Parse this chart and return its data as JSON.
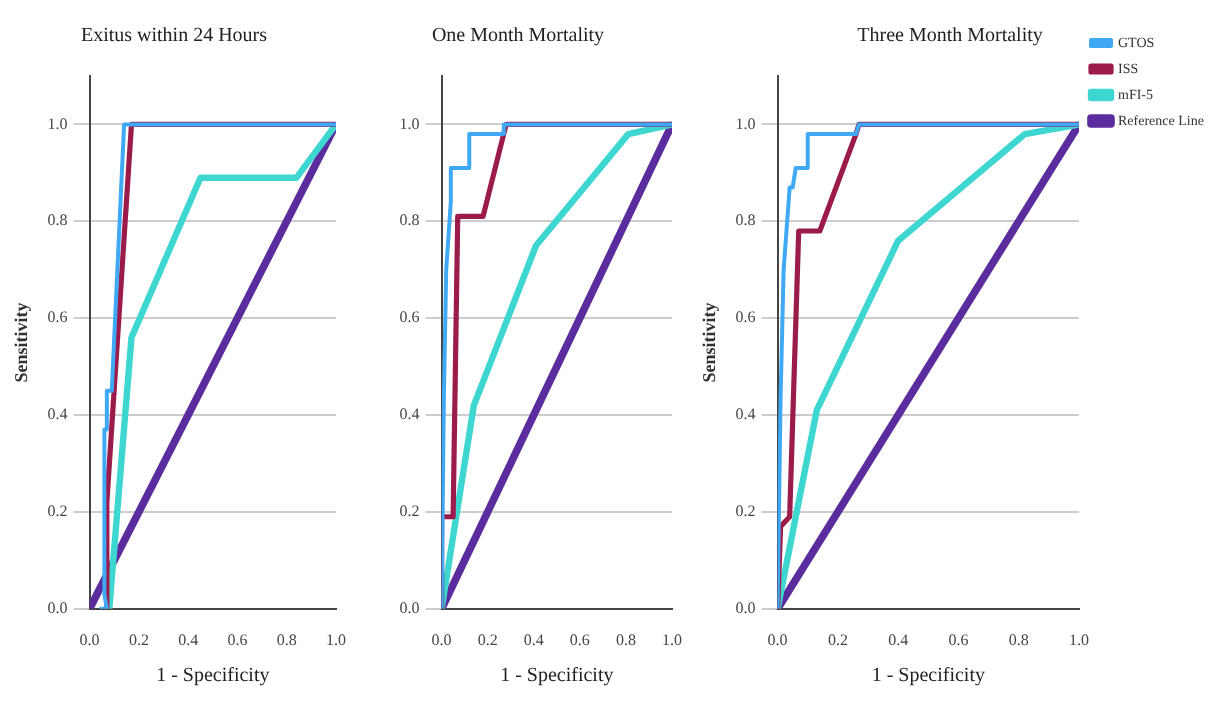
{
  "chart_data": [
    {
      "type": "line",
      "title": "Exitus within 24 Hours",
      "xlabel": "1 - Specificity",
      "ylabel": "Sensitivity",
      "xlim": [
        0,
        1
      ],
      "ylim": [
        0,
        1.1
      ],
      "xticks": [
        {
          "value": 0,
          "label": "0.0"
        },
        {
          "value": 0.2,
          "label": "0.2"
        },
        {
          "value": 0.4,
          "label": "0.4"
        },
        {
          "value": 0.6,
          "label": "0.6"
        },
        {
          "value": 0.8,
          "label": "0.8"
        },
        {
          "value": 1,
          "label": "1.0"
        }
      ],
      "yticks": [
        {
          "value": 0,
          "label": "0.0"
        },
        {
          "value": 0.2,
          "label": "0.2"
        },
        {
          "value": 0.4,
          "label": "0.4"
        },
        {
          "value": 0.6,
          "label": "0.6"
        },
        {
          "value": 0.8,
          "label": "0.8"
        },
        {
          "value": 1,
          "label": "1.0"
        }
      ],
      "grid": "y",
      "legend": false,
      "marker": "none",
      "series": [
        {
          "color": "#3fa9f5",
          "x": [
            0.04,
            0.07,
            0.06,
            0.06,
            0.07,
            0.07,
            0.09,
            0.14,
            1
          ],
          "values": [
            0,
            0,
            0.03,
            0.37,
            0.37,
            0.45,
            0.45,
            1,
            1
          ]
        },
        {
          "color": "#9b1b4b",
          "x": [
            0.07,
            0.07,
            0.17,
            1
          ],
          "values": [
            0,
            0.22,
            1,
            1
          ]
        },
        {
          "color": "#3dd6d0",
          "x": [
            0.08,
            0.17,
            0.45,
            0.84,
            1
          ],
          "values": [
            0,
            0.56,
            0.89,
            0.89,
            1
          ]
        },
        {
          "color": "#5b2c9e",
          "x": [
            0,
            1
          ],
          "values": [
            0,
            1
          ]
        }
      ]
    },
    {
      "type": "line",
      "title": "One Month Mortality",
      "xlabel": "1 - Specificity",
      "xlim": [
        0,
        1
      ],
      "ylim": [
        0,
        1.1
      ],
      "xticks": [
        {
          "value": 0,
          "label": "0.0"
        },
        {
          "value": 0.2,
          "label": "0.2"
        },
        {
          "value": 0.4,
          "label": "0.4"
        },
        {
          "value": 0.6,
          "label": "0.6"
        },
        {
          "value": 0.8,
          "label": "0.8"
        },
        {
          "value": 1,
          "label": "1.0"
        }
      ],
      "yticks": [
        {
          "value": 0,
          "label": "0.0"
        },
        {
          "value": 0.2,
          "label": "0.2"
        },
        {
          "value": 0.4,
          "label": "0.4"
        },
        {
          "value": 0.6,
          "label": "0.6"
        },
        {
          "value": 0.8,
          "label": "0.8"
        },
        {
          "value": 1,
          "label": "1.0"
        }
      ],
      "grid": "y",
      "legend": false,
      "marker": "none",
      "series": [
        {
          "color": "#3fa9f5",
          "x": [
            0,
            0.01,
            0.02,
            0.04,
            0.04,
            0.12,
            0.12,
            0.27,
            0.27,
            1
          ],
          "values": [
            0,
            0.44,
            0.7,
            0.84,
            0.91,
            0.91,
            0.98,
            0.98,
            1,
            1
          ]
        },
        {
          "color": "#9b1b4b",
          "x": [
            0,
            0,
            0.05,
            0.07,
            0.18,
            0.28,
            1
          ],
          "values": [
            0,
            0.19,
            0.19,
            0.81,
            0.81,
            1,
            1
          ]
        },
        {
          "color": "#3dd6d0",
          "x": [
            0,
            0.14,
            0.41,
            0.81,
            1
          ],
          "values": [
            0,
            0.42,
            0.75,
            0.98,
            1
          ]
        },
        {
          "color": "#5b2c9e",
          "x": [
            0,
            1
          ],
          "values": [
            0,
            1
          ]
        }
      ]
    },
    {
      "type": "line",
      "title": "Three Month Mortality",
      "xlabel": "1 - Specificity",
      "ylabel": "Sensitivity",
      "xlim": [
        0,
        1
      ],
      "ylim": [
        0,
        1.1
      ],
      "xticks": [
        {
          "value": 0,
          "label": "0.0"
        },
        {
          "value": 0.2,
          "label": "0.2"
        },
        {
          "value": 0.4,
          "label": "0.4"
        },
        {
          "value": 0.6,
          "label": "0.6"
        },
        {
          "value": 0.8,
          "label": "0.8"
        },
        {
          "value": 1,
          "label": "1.0"
        }
      ],
      "yticks": [
        {
          "value": 0,
          "label": "0.0"
        },
        {
          "value": 0.2,
          "label": "0.2"
        },
        {
          "value": 0.4,
          "label": "0.4"
        },
        {
          "value": 0.6,
          "label": "0.6"
        },
        {
          "value": 0.8,
          "label": "0.8"
        },
        {
          "value": 1,
          "label": "1.0"
        }
      ],
      "grid": "y",
      "legend": "right",
      "marker": "none",
      "series": [
        {
          "name": "GTOS",
          "color": "#3fa9f5",
          "x": [
            0,
            0.01,
            0.02,
            0.04,
            0.05,
            0.06,
            0.1,
            0.1,
            0.26,
            0.27,
            1
          ],
          "values": [
            0,
            0.44,
            0.7,
            0.87,
            0.87,
            0.91,
            0.91,
            0.98,
            0.98,
            1,
            1
          ]
        },
        {
          "name": "ISS",
          "color": "#9b1b4b",
          "x": [
            0,
            0.01,
            0.04,
            0.07,
            0.14,
            0.26,
            0.27,
            1
          ],
          "values": [
            0,
            0.17,
            0.19,
            0.78,
            0.78,
            0.98,
            1,
            1
          ]
        },
        {
          "name": "mFI-5",
          "color": "#3dd6d0",
          "x": [
            0,
            0.13,
            0.4,
            0.82,
            1
          ],
          "values": [
            0,
            0.41,
            0.76,
            0.98,
            1
          ]
        },
        {
          "name": "Reference Line",
          "color": "#5b2c9e",
          "x": [
            0,
            1
          ],
          "values": [
            0,
            1
          ]
        }
      ]
    }
  ]
}
